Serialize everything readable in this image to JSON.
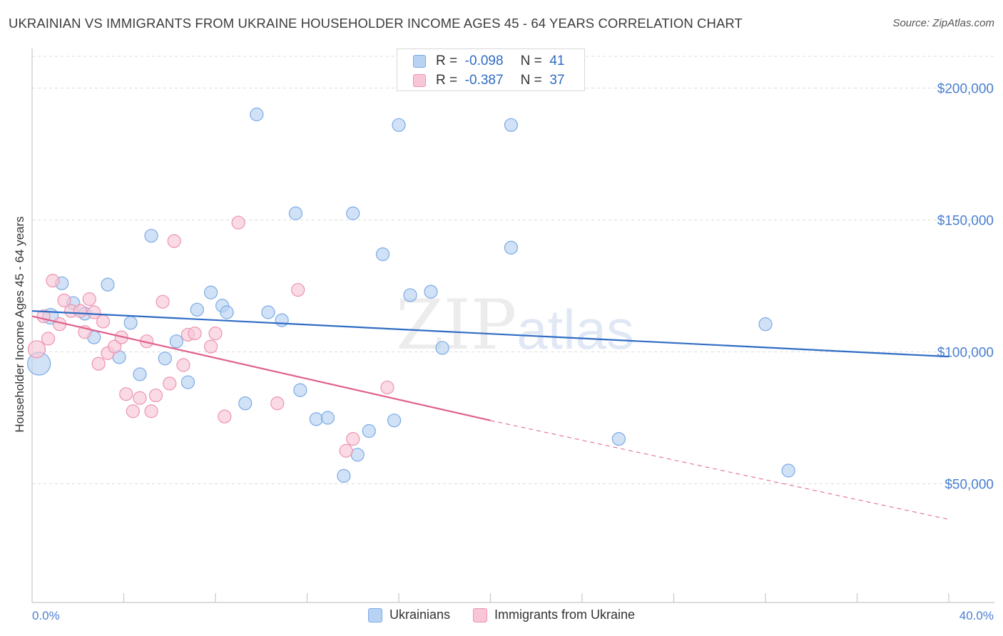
{
  "title": "UKRAINIAN VS IMMIGRANTS FROM UKRAINE HOUSEHOLDER INCOME AGES 45 - 64 YEARS CORRELATION CHART",
  "source": "Source: ZipAtlas.com",
  "watermark": {
    "zip": "ZIP",
    "atlas": "atlas"
  },
  "colors": {
    "blue_fill": "#b8d2f3",
    "blue_stroke": "#7aaae6",
    "blue_line": "#2f6cc4",
    "pink_fill": "#f8c6d6",
    "pink_stroke": "#ee93b1",
    "pink_line": "#e0608c",
    "grid": "#dcdcdc",
    "axis": "#c8c8c8"
  },
  "legend": {
    "rows": [
      {
        "r_label": "R =",
        "r_value": "-0.098",
        "n_label": "N =",
        "n_value": "41"
      },
      {
        "r_label": "R =",
        "r_value": "-0.387",
        "n_label": "N =",
        "n_value": "37"
      }
    ]
  },
  "bottom_legend": [
    "Ukrainians",
    "Immigrants from Ukraine"
  ],
  "chart_data": {
    "type": "scatter",
    "title": "UKRAINIAN VS IMMIGRANTS FROM UKRAINE HOUSEHOLDER INCOME AGES 45 - 64 YEARS CORRELATION CHART",
    "xlabel": "",
    "ylabel": "Householder Income Ages 45 - 64 years",
    "xlim": [
      0,
      40
    ],
    "ylim": [
      5000,
      215000
    ],
    "x_tick_labels": [
      "0.0%",
      "40.0%"
    ],
    "y_ticks": [
      50000,
      100000,
      150000,
      200000
    ],
    "y_tick_labels": [
      "$50,000",
      "$100,000",
      "$150,000",
      "$200,000"
    ],
    "grid": true,
    "series": [
      {
        "name": "Ukrainians",
        "r": -0.098,
        "n": 41,
        "trend": {
          "x0": 0,
          "y0": 115500,
          "x1": 40,
          "y1": 98200
        },
        "points": [
          [
            0.3,
            95500,
            16
          ],
          [
            0.8,
            113500,
            11
          ],
          [
            1.3,
            126000,
            9
          ],
          [
            1.8,
            118500,
            9
          ],
          [
            2.3,
            114500,
            9
          ],
          [
            2.7,
            105500,
            9
          ],
          [
            3.3,
            125500,
            9
          ],
          [
            3.8,
            98000,
            9
          ],
          [
            4.3,
            111000,
            9
          ],
          [
            4.7,
            91500,
            9
          ],
          [
            5.2,
            144000,
            9
          ],
          [
            5.8,
            97500,
            9
          ],
          [
            6.3,
            104000,
            9
          ],
          [
            6.8,
            88500,
            9
          ],
          [
            7.2,
            116000,
            9
          ],
          [
            7.8,
            122500,
            9
          ],
          [
            8.3,
            117500,
            9
          ],
          [
            8.5,
            115000,
            9
          ],
          [
            9.3,
            80500,
            9
          ],
          [
            9.8,
            190000,
            9
          ],
          [
            10.3,
            115000,
            9
          ],
          [
            10.9,
            112000,
            9
          ],
          [
            11.5,
            152500,
            9
          ],
          [
            11.7,
            85500,
            9
          ],
          [
            12.4,
            74500,
            9
          ],
          [
            12.9,
            75000,
            9
          ],
          [
            13.6,
            53000,
            9
          ],
          [
            14.0,
            152500,
            9
          ],
          [
            14.2,
            61000,
            9
          ],
          [
            14.7,
            70000,
            9
          ],
          [
            15.3,
            137000,
            9
          ],
          [
            15.8,
            74000,
            9
          ],
          [
            16.0,
            186000,
            9
          ],
          [
            16.5,
            121500,
            9
          ],
          [
            17.4,
            122800,
            9
          ],
          [
            17.9,
            101500,
            9
          ],
          [
            20.9,
            186000,
            9
          ],
          [
            20.9,
            139500,
            9
          ],
          [
            25.6,
            67000,
            9
          ],
          [
            32.0,
            110500,
            9
          ],
          [
            33.0,
            55000,
            9
          ]
        ]
      },
      {
        "name": "Immigrants from Ukraine",
        "r": -0.387,
        "n": 37,
        "trend": {
          "x0": 0,
          "y0": 113500,
          "x1": 20,
          "y1": 74000,
          "dash_x1": 40,
          "dash_y1": 36500
        },
        "points": [
          [
            0.2,
            101000,
            12
          ],
          [
            0.5,
            113500,
            9
          ],
          [
            0.7,
            105000,
            9
          ],
          [
            0.9,
            127000,
            9
          ],
          [
            1.2,
            110500,
            9
          ],
          [
            1.4,
            119500,
            9
          ],
          [
            1.7,
            115500,
            9
          ],
          [
            2.1,
            115500,
            9
          ],
          [
            2.3,
            107500,
            9
          ],
          [
            2.5,
            120000,
            9
          ],
          [
            2.7,
            115000,
            9
          ],
          [
            2.9,
            95500,
            9
          ],
          [
            3.1,
            111500,
            9
          ],
          [
            3.3,
            99500,
            9
          ],
          [
            3.6,
            102000,
            9
          ],
          [
            3.9,
            105500,
            9
          ],
          [
            4.1,
            84000,
            9
          ],
          [
            4.4,
            77500,
            9
          ],
          [
            4.7,
            82500,
            9
          ],
          [
            5.0,
            104000,
            9
          ],
          [
            5.2,
            77500,
            9
          ],
          [
            5.4,
            83500,
            9
          ],
          [
            5.7,
            119000,
            9
          ],
          [
            6.0,
            88000,
            9
          ],
          [
            6.2,
            142000,
            9
          ],
          [
            6.6,
            95000,
            9
          ],
          [
            6.8,
            106500,
            9
          ],
          [
            7.1,
            107000,
            9
          ],
          [
            7.8,
            102000,
            9
          ],
          [
            8.0,
            107000,
            9
          ],
          [
            8.4,
            75500,
            9
          ],
          [
            9.0,
            149000,
            9
          ],
          [
            10.7,
            80500,
            9
          ],
          [
            11.6,
            123500,
            9
          ],
          [
            13.7,
            62500,
            9
          ],
          [
            14.0,
            67000,
            9
          ],
          [
            15.5,
            86500,
            9
          ]
        ]
      }
    ]
  }
}
